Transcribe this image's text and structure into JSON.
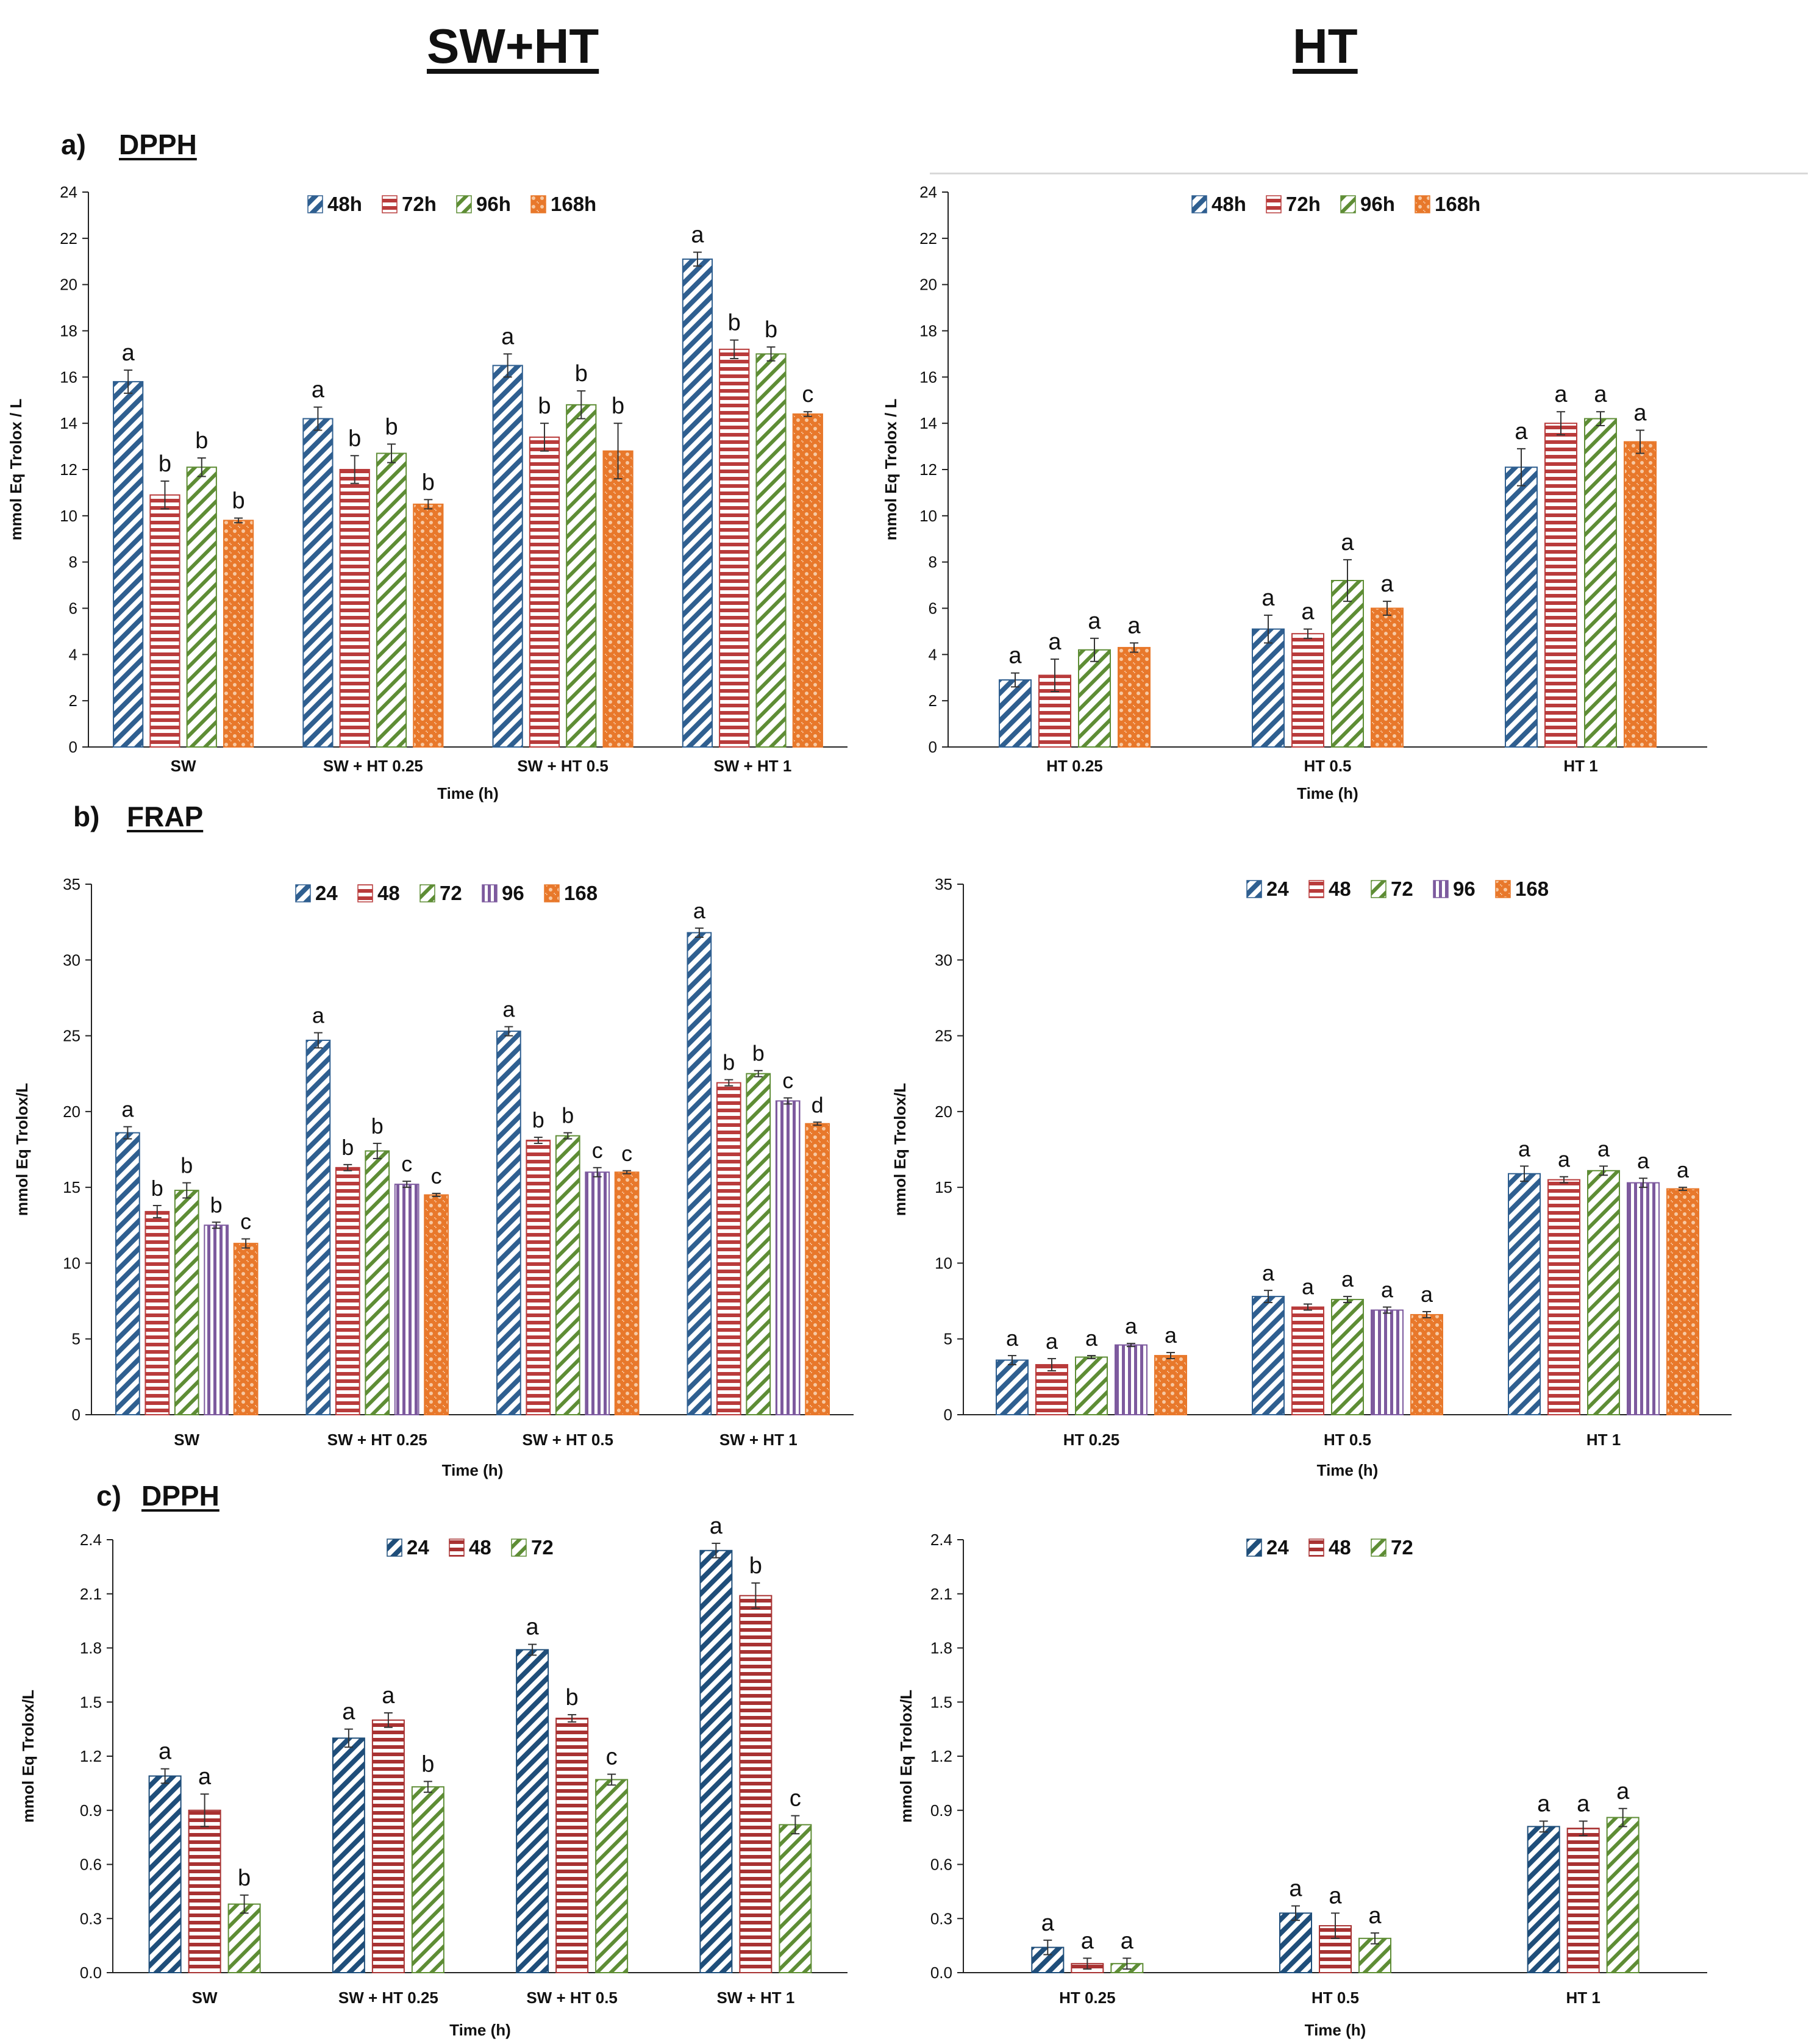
{
  "headers": {
    "left": "SW+HT",
    "right": "HT"
  },
  "sections": [
    {
      "letter": "a)",
      "title": "DPPH"
    },
    {
      "letter": "b)",
      "title": "FRAP"
    },
    {
      "letter": "c)",
      "title": "DPPH"
    }
  ],
  "colors": {
    "blue": "#2f5f90",
    "red": "#b93b3b",
    "green": "#5e8d35",
    "purple": "#7d5a9e",
    "orange": "#e8782b"
  },
  "chart_data": [
    {
      "id": "a-left",
      "type": "bar",
      "ylabel": "mmol Eq Trolox / L",
      "xlabel": "Time (h)",
      "ylim": [
        0,
        24
      ],
      "ytick_step": 2,
      "ytick_decimals": 0,
      "categories": [
        "SW",
        "SW + HT 0.25",
        "SW + HT 0.5",
        "SW + HT 1"
      ],
      "series": [
        {
          "name": "48h",
          "pattern": "diag",
          "color": "#2f5f90",
          "values": [
            15.8,
            14.2,
            16.5,
            21.1
          ],
          "errors": [
            0.5,
            0.5,
            0.5,
            0.3
          ],
          "letters": [
            "a",
            "a",
            "a",
            "a"
          ]
        },
        {
          "name": "72h",
          "pattern": "horiz",
          "color": "#b93b3b",
          "values": [
            10.9,
            12.0,
            13.4,
            17.2
          ],
          "errors": [
            0.6,
            0.6,
            0.6,
            0.4
          ],
          "letters": [
            "b",
            "b",
            "b",
            "b"
          ]
        },
        {
          "name": "96h",
          "pattern": "diag2",
          "color": "#5e8d35",
          "values": [
            12.1,
            12.7,
            14.8,
            17.0
          ],
          "errors": [
            0.4,
            0.4,
            0.6,
            0.3
          ],
          "letters": [
            "b",
            "b",
            "b",
            "b"
          ]
        },
        {
          "name": "168h",
          "pattern": "dots",
          "color": "#e8782b",
          "values": [
            9.8,
            10.5,
            12.8,
            14.4
          ],
          "errors": [
            0.1,
            0.2,
            1.2,
            0.1
          ],
          "letters": [
            "b",
            "b",
            "b",
            "c"
          ]
        }
      ]
    },
    {
      "id": "a-right",
      "type": "bar",
      "ylabel": "mmol Eq Trolox / L",
      "xlabel": "Time (h)",
      "ylim": [
        0,
        24
      ],
      "ytick_step": 2,
      "ytick_decimals": 0,
      "categories": [
        "HT 0.25",
        "HT 0.5",
        "HT 1"
      ],
      "series": [
        {
          "name": "48h",
          "pattern": "diag",
          "color": "#2f5f90",
          "values": [
            2.9,
            5.1,
            12.1
          ],
          "errors": [
            0.3,
            0.6,
            0.8
          ],
          "letters": [
            "a",
            "a",
            "a"
          ]
        },
        {
          "name": "72h",
          "pattern": "horiz",
          "color": "#b93b3b",
          "values": [
            3.1,
            4.9,
            14.0
          ],
          "errors": [
            0.7,
            0.2,
            0.5
          ],
          "letters": [
            "a",
            "a",
            "a"
          ]
        },
        {
          "name": "96h",
          "pattern": "diag2",
          "color": "#5e8d35",
          "values": [
            4.2,
            7.2,
            14.2
          ],
          "errors": [
            0.5,
            0.9,
            0.3
          ],
          "letters": [
            "a",
            "a",
            "a"
          ]
        },
        {
          "name": "168h",
          "pattern": "dots",
          "color": "#e8782b",
          "values": [
            4.3,
            6.0,
            13.2
          ],
          "errors": [
            0.2,
            0.3,
            0.5
          ],
          "letters": [
            "a",
            "a",
            "a"
          ]
        }
      ]
    },
    {
      "id": "b-left",
      "type": "bar",
      "ylabel": "mmol Eq Trolox/L",
      "xlabel": "Time (h)",
      "ylim": [
        0,
        35
      ],
      "ytick_step": 5,
      "ytick_decimals": 0,
      "categories": [
        "SW",
        "SW  + HT 0.25",
        "SW  + HT 0.5",
        "SW + HT 1"
      ],
      "series": [
        {
          "name": "24",
          "pattern": "diag",
          "color": "#2f5f90",
          "values": [
            18.6,
            24.7,
            25.3,
            31.8
          ],
          "errors": [
            0.4,
            0.5,
            0.3,
            0.3
          ],
          "letters": [
            "a",
            "a",
            "a",
            "a"
          ]
        },
        {
          "name": "48",
          "pattern": "horiz",
          "color": "#b93b3b",
          "values": [
            13.4,
            16.3,
            18.1,
            21.9
          ],
          "errors": [
            0.4,
            0.2,
            0.2,
            0.2
          ],
          "letters": [
            "b",
            "b",
            "b",
            "b"
          ]
        },
        {
          "name": "72",
          "pattern": "diag2",
          "color": "#5e8d35",
          "values": [
            14.8,
            17.4,
            18.4,
            22.5
          ],
          "errors": [
            0.5,
            0.5,
            0.2,
            0.2
          ],
          "letters": [
            "b",
            "b",
            "b",
            "b"
          ]
        },
        {
          "name": "96",
          "pattern": "vert",
          "color": "#7d5a9e",
          "values": [
            12.5,
            15.2,
            16.0,
            20.7
          ],
          "errors": [
            0.2,
            0.2,
            0.3,
            0.2
          ],
          "letters": [
            "b",
            "c",
            "c",
            "c"
          ]
        },
        {
          "name": "168",
          "pattern": "dots",
          "color": "#e8782b",
          "values": [
            11.3,
            14.5,
            16.0,
            19.2
          ],
          "errors": [
            0.3,
            0.1,
            0.1,
            0.1
          ],
          "letters": [
            "c",
            "c",
            "c",
            "d"
          ]
        }
      ]
    },
    {
      "id": "b-right",
      "type": "bar",
      "ylabel": "mmol Eq Trolox/L",
      "xlabel": "Time (h)",
      "ylim": [
        0,
        35
      ],
      "ytick_step": 5,
      "ytick_decimals": 0,
      "categories": [
        "HT 0.25",
        "HT 0.5",
        "HT 1"
      ],
      "series": [
        {
          "name": "24",
          "pattern": "diag",
          "color": "#2f5f90",
          "values": [
            3.6,
            7.8,
            15.9
          ],
          "errors": [
            0.3,
            0.4,
            0.5
          ],
          "letters": [
            "a",
            "a",
            "a"
          ]
        },
        {
          "name": "48",
          "pattern": "horiz",
          "color": "#b93b3b",
          "values": [
            3.3,
            7.1,
            15.5
          ],
          "errors": [
            0.4,
            0.2,
            0.2
          ],
          "letters": [
            "a",
            "a",
            "a"
          ]
        },
        {
          "name": "72",
          "pattern": "diag2",
          "color": "#5e8d35",
          "values": [
            3.8,
            7.6,
            16.1
          ],
          "errors": [
            0.1,
            0.2,
            0.3
          ],
          "letters": [
            "a",
            "a",
            "a"
          ]
        },
        {
          "name": "96",
          "pattern": "vert",
          "color": "#7d5a9e",
          "values": [
            4.6,
            6.9,
            15.3
          ],
          "errors": [
            0.1,
            0.2,
            0.3
          ],
          "letters": [
            "a",
            "a",
            "a"
          ]
        },
        {
          "name": "168",
          "pattern": "dots",
          "color": "#e8782b",
          "values": [
            3.9,
            6.6,
            14.9
          ],
          "errors": [
            0.2,
            0.2,
            0.1
          ],
          "letters": [
            "a",
            "a",
            "a"
          ]
        }
      ]
    },
    {
      "id": "c-left",
      "type": "bar",
      "ylabel": "mmol Eq Trolox/L",
      "xlabel": "Time (h)",
      "ylim": [
        0,
        2.4
      ],
      "ytick_step": 0.3,
      "ytick_decimals": 1,
      "categories": [
        "SW",
        "SW + HT 0.25",
        "SW + HT 0.5",
        "SW + HT 1"
      ],
      "series": [
        {
          "name": "24",
          "pattern": "diag",
          "color": "#1f4e7a",
          "values": [
            1.09,
            1.3,
            1.79,
            2.34
          ],
          "errors": [
            0.04,
            0.05,
            0.03,
            0.04
          ],
          "letters": [
            "a",
            "a",
            "a",
            "a"
          ]
        },
        {
          "name": "48",
          "pattern": "horiz",
          "color": "#a83232",
          "values": [
            0.9,
            1.4,
            1.41,
            2.09
          ],
          "errors": [
            0.09,
            0.04,
            0.02,
            0.07
          ],
          "letters": [
            "a",
            "a",
            "b",
            "b"
          ]
        },
        {
          "name": "72",
          "pattern": "diag2",
          "color": "#5e8d35",
          "values": [
            0.38,
            1.03,
            1.07,
            0.82
          ],
          "errors": [
            0.05,
            0.03,
            0.03,
            0.05
          ],
          "letters": [
            "b",
            "b",
            "c",
            "c"
          ]
        }
      ]
    },
    {
      "id": "c-right",
      "type": "bar",
      "ylabel": "mmol Eq Trolox/L",
      "xlabel": "Time (h)",
      "ylim": [
        0,
        2.4
      ],
      "ytick_step": 0.3,
      "ytick_decimals": 1,
      "categories": [
        "HT 0.25",
        "HT 0.5",
        "HT 1"
      ],
      "series": [
        {
          "name": "24",
          "pattern": "diag",
          "color": "#1f4e7a",
          "values": [
            0.14,
            0.33,
            0.81
          ],
          "errors": [
            0.04,
            0.04,
            0.03
          ],
          "letters": [
            "a",
            "a",
            "a"
          ]
        },
        {
          "name": "48",
          "pattern": "horiz",
          "color": "#a83232",
          "values": [
            0.05,
            0.26,
            0.8
          ],
          "errors": [
            0.03,
            0.07,
            0.04
          ],
          "letters": [
            "a",
            "a",
            "a"
          ]
        },
        {
          "name": "72",
          "pattern": "diag2",
          "color": "#5e8d35",
          "values": [
            0.05,
            0.19,
            0.86
          ],
          "errors": [
            0.03,
            0.03,
            0.05
          ],
          "letters": [
            "a",
            "a",
            "a"
          ]
        }
      ]
    }
  ]
}
